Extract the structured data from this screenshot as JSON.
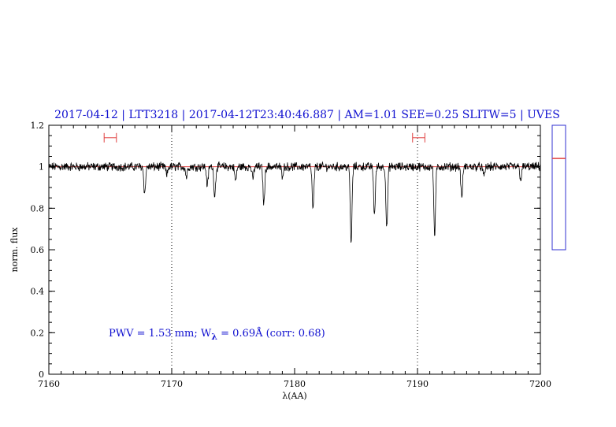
{
  "chart_data": {
    "type": "line",
    "title": "2017-04-12 | LTT3218 | 2017-04-12T23:40:46.887 | AM=1.01  SEE=0.25  SLITW=5 | UVES",
    "xlabel": "λ(AA)",
    "ylabel": "norm. flux",
    "xlim": [
      7160,
      7200
    ],
    "ylim": [
      0,
      1.2
    ],
    "x_ticks": [
      7160,
      7170,
      7180,
      7190,
      7200
    ],
    "y_ticks": [
      0,
      0.2,
      0.4,
      0.6,
      0.8,
      1,
      1.2
    ],
    "x_tick_labels": [
      "7160",
      "7170",
      "7180",
      "7190",
      "7200"
    ],
    "y_tick_labels": [
      "0",
      "0.2",
      "0.4",
      "0.6",
      "0.8",
      "1",
      "1.2"
    ],
    "grid": false,
    "continuum_level": 1.0,
    "vertical_markers": [
      7170,
      7190
    ],
    "continuum_windows": [
      {
        "x0": 7164.5,
        "x1": 7165.5,
        "y": 1.14
      },
      {
        "x0": 7189.6,
        "x1": 7190.6,
        "y": 1.14
      }
    ],
    "absorption_lines": [
      {
        "x": 7167.8,
        "depth": 0.13
      },
      {
        "x": 7169.6,
        "depth": 0.04
      },
      {
        "x": 7171.2,
        "depth": 0.05
      },
      {
        "x": 7172.9,
        "depth": 0.09
      },
      {
        "x": 7173.5,
        "depth": 0.14
      },
      {
        "x": 7175.2,
        "depth": 0.07
      },
      {
        "x": 7176.6,
        "depth": 0.06
      },
      {
        "x": 7177.5,
        "depth": 0.18
      },
      {
        "x": 7179.0,
        "depth": 0.04
      },
      {
        "x": 7181.5,
        "depth": 0.21
      },
      {
        "x": 7184.6,
        "depth": 0.37
      },
      {
        "x": 7186.5,
        "depth": 0.23
      },
      {
        "x": 7187.5,
        "depth": 0.3
      },
      {
        "x": 7191.4,
        "depth": 0.33
      },
      {
        "x": 7193.6,
        "depth": 0.15
      },
      {
        "x": 7195.4,
        "depth": 0.05
      },
      {
        "x": 7198.4,
        "depth": 0.06
      }
    ],
    "annotation_prefix": "PWV = 1.53 mm; W",
    "annotation_subscript": "λ",
    "annotation_suffix": " = 0.69Å (corr: 0.68)",
    "side_indicator": {
      "ymin": 0.6,
      "ymax": 1.2,
      "value": 1.04
    },
    "colors": {
      "spectrum": "#000000",
      "continuum": "#e04040",
      "text": "#1010d0",
      "indicator_box": "#3030d0"
    }
  }
}
